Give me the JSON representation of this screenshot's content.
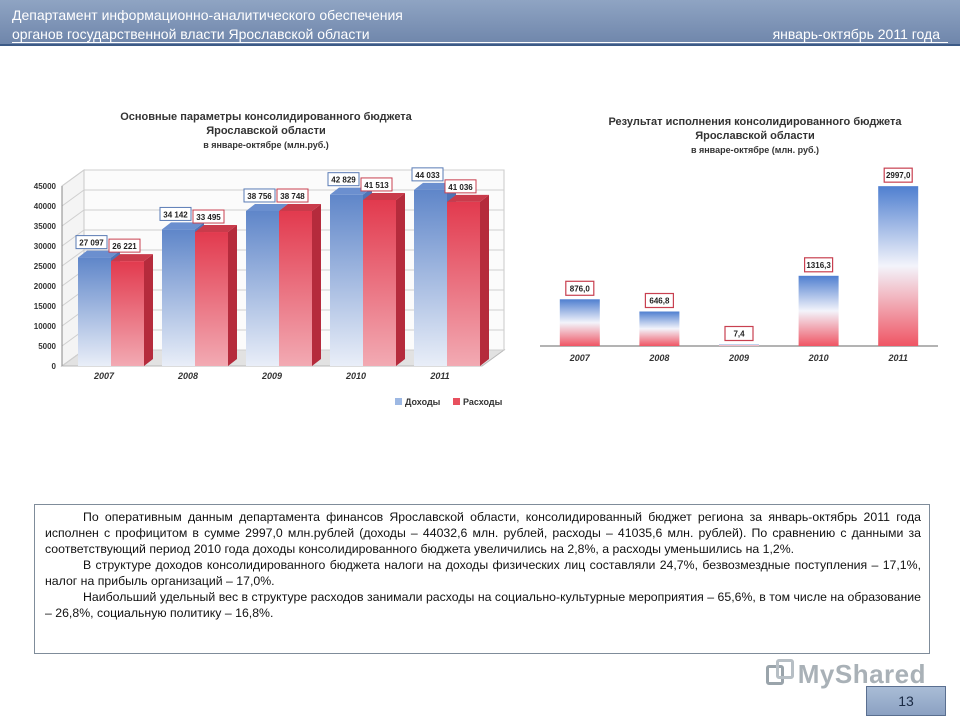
{
  "header": {
    "line1": "Департамент информационно-аналитического обеспечения",
    "line2": "органов государственной власти Ярославской области",
    "period": "январь-октябрь 2011 года"
  },
  "chart_data": [
    {
      "type": "bar",
      "title": "Основные параметры консолидированного бюджета Ярославской области",
      "subtitle": "в январе-октябре (млн.руб.)",
      "categories": [
        "2007",
        "2008",
        "2009",
        "2010",
        "2011"
      ],
      "series": [
        {
          "name": "Доходы",
          "values": [
            27097,
            34142,
            38756,
            42829,
            44033
          ],
          "labels": [
            "27 097",
            "34 142",
            "38 756",
            "42 829",
            "44 033"
          ],
          "color": "#9db8e3"
        },
        {
          "name": "Расходы",
          "values": [
            26221,
            33495,
            38748,
            41513,
            41036
          ],
          "labels": [
            "26 221",
            "33 495",
            "38 748",
            "41 513",
            "41 036"
          ],
          "color": "#e8505e"
        }
      ],
      "ylim": [
        0,
        45000
      ],
      "yticks": [
        "0",
        "5000",
        "10000",
        "15000",
        "20000",
        "25000",
        "30000",
        "35000",
        "40000",
        "45000"
      ],
      "yticks_values": [
        0,
        5000,
        10000,
        15000,
        20000,
        25000,
        30000,
        35000,
        40000,
        45000
      ],
      "legend": [
        "Доходы",
        "Расходы"
      ]
    },
    {
      "type": "bar",
      "title": "Результат исполнения консолидированного бюджета Ярославской области",
      "subtitle": "в январе-октябре (млн. руб.)",
      "categories": [
        "2007",
        "2008",
        "2009",
        "2010",
        "2011"
      ],
      "values": [
        876.0,
        646.8,
        7.4,
        1316.3,
        2997.0
      ],
      "labels": [
        "876,0",
        "646,8",
        "7,4",
        "1316,3",
        "2997,0"
      ],
      "ylim": [
        0,
        3000
      ]
    }
  ],
  "text": {
    "p1": "По оперативным данным департамента финансов Ярославской области, консолидированный бюджет региона за январь-октябрь 2011 года исполнен с профицитом в сумме 2997,0 млн.рублей (доходы – 44032,6 млн. рублей, расходы – 41035,6 млн. рублей). По сравнению с данными за соответствующий период 2010 года доходы консолидированного бюджета увеличились на 2,8%, а расходы уменьшились на 1,2%.",
    "p2": "В структуре доходов консолидированного бюджета налоги на доходы физических лиц составляли 24,7%, безвозмездные поступления – 17,1%, налог на прибыль организаций – 17,0%.",
    "p3": "Наибольший удельный вес в структуре расходов занимали расходы на социально-культурные мероприятия – 65,6%, в том числе на образование – 26,8%, социальную политику – 16,8%."
  },
  "watermark": "MyShared",
  "page_number": "13",
  "colors": {
    "header_bg": "#7f96b8",
    "income": "#9db8e3",
    "expense": "#e8505e",
    "result_top": "#4f7fd0",
    "result_bottom": "#f06a74"
  }
}
